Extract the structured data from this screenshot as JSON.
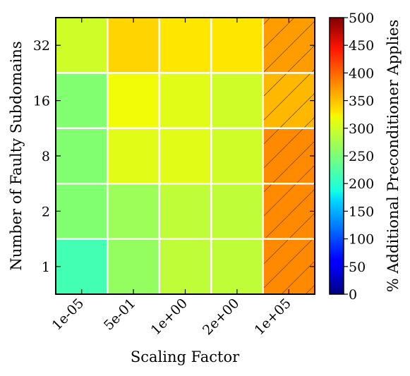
{
  "chart_data": {
    "type": "heatmap",
    "xlabel": "Scaling Factor",
    "ylabel": "Number of Faulty Subdomains",
    "x_categories": [
      "1e-05",
      "5e-01",
      "1e+00",
      "2e+00",
      "1e+05"
    ],
    "y_categories": [
      "1",
      "2",
      "8",
      "16",
      "32"
    ],
    "values": [
      [
        215,
        265,
        290,
        290,
        380
      ],
      [
        255,
        270,
        290,
        290,
        380
      ],
      [
        255,
        310,
        310,
        300,
        380
      ],
      [
        255,
        320,
        310,
        300,
        355
      ],
      [
        300,
        340,
        330,
        330,
        370
      ]
    ],
    "hatched_column": "1e+05",
    "colorbar": {
      "label": "% Additional Preconditioner Applies",
      "range": [
        0,
        500
      ],
      "ticks": [
        "0",
        "50",
        "100",
        "150",
        "200",
        "250",
        "300",
        "350",
        "400",
        "450",
        "500"
      ],
      "colormap": "jet"
    }
  }
}
